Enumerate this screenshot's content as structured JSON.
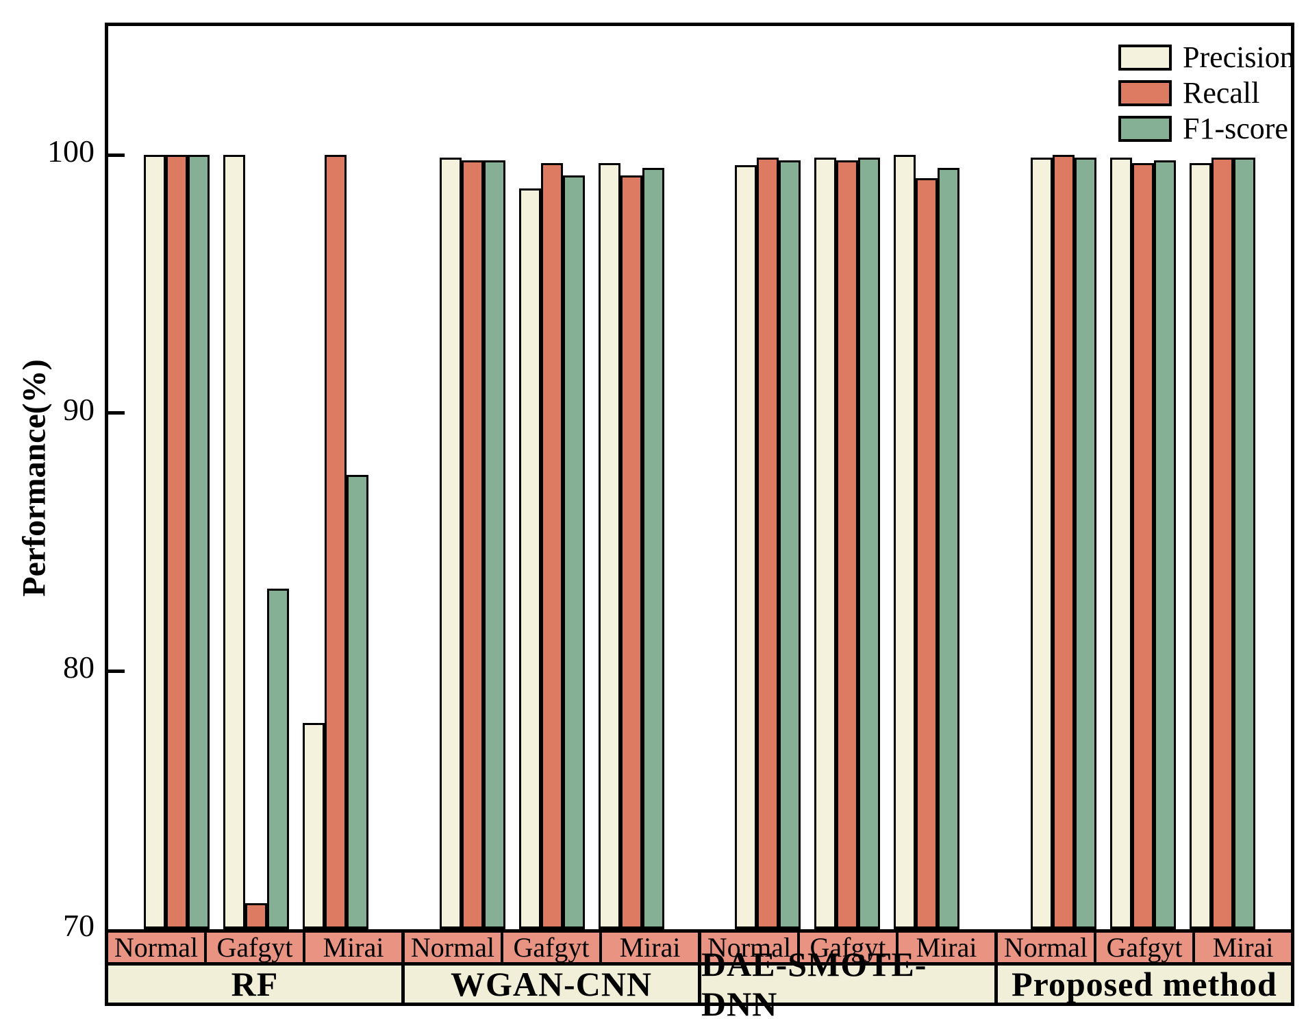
{
  "chart_data": {
    "type": "bar",
    "title": "",
    "ylabel": "Performance(%)",
    "ylim": [
      70,
      105
    ],
    "yticks": [
      100,
      90,
      80,
      70
    ],
    "grid": false,
    "legend_position": "upper-right-inside",
    "series": [
      {
        "name": "Precision",
        "color": "#F4F1DC"
      },
      {
        "name": "Recall",
        "color": "#DC7A62"
      },
      {
        "name": "F1-score",
        "color": "#85B096"
      }
    ],
    "category_band_color": "#E99483",
    "method_band_color": "#F2EFD9",
    "frame_color": "#000000",
    "groups": [
      {
        "method": "RF",
        "categories": [
          "Normal",
          "Gafgyt",
          "Mirai"
        ],
        "values": {
          "Precision": [
            100,
            100,
            78
          ],
          "Recall": [
            100,
            71,
            100
          ],
          "F1-score": [
            100,
            83.2,
            87.6
          ]
        }
      },
      {
        "method": "WGAN-CNN",
        "categories": [
          "Normal",
          "Gafgyt",
          "Mirai"
        ],
        "values": {
          "Precision": [
            99.9,
            98.7,
            99.7
          ],
          "Recall": [
            99.8,
            99.7,
            99.2
          ],
          "F1-score": [
            99.8,
            99.2,
            99.5
          ]
        }
      },
      {
        "method": "DAE-SMOTE-DNN",
        "categories": [
          "Normal",
          "Gafgyt",
          "Mirai"
        ],
        "values": {
          "Precision": [
            99.6,
            99.9,
            100
          ],
          "Recall": [
            99.9,
            99.8,
            99.1
          ],
          "F1-score": [
            99.8,
            99.9,
            99.5
          ]
        }
      },
      {
        "method": "Proposed method",
        "categories": [
          "Normal",
          "Gafgyt",
          "Mirai"
        ],
        "values": {
          "Precision": [
            99.9,
            99.9,
            99.7
          ],
          "Recall": [
            100,
            99.7,
            99.9
          ],
          "F1-score": [
            99.9,
            99.8,
            99.9
          ]
        }
      }
    ]
  }
}
